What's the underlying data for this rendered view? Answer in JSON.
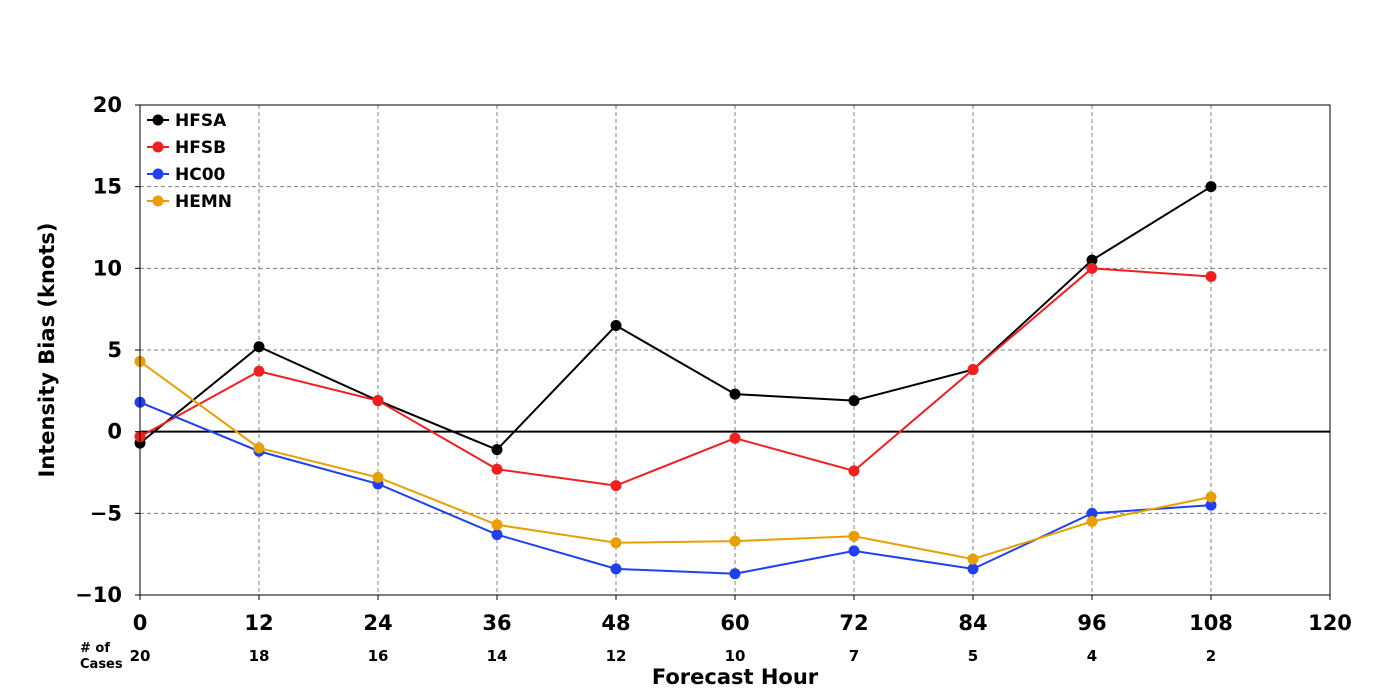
{
  "chart_data": {
    "type": "line",
    "xlabel": "Forecast Hour",
    "ylabel": "Intensity Bias (knots)",
    "xlim": [
      0,
      120
    ],
    "ylim": [
      -10,
      20
    ],
    "x_ticks": [
      0,
      12,
      24,
      36,
      48,
      60,
      72,
      84,
      96,
      108,
      120
    ],
    "x_tick_labels": [
      "0",
      "12",
      "24",
      "36",
      "48",
      "60",
      "72",
      "84",
      "96",
      "108",
      "120"
    ],
    "y_ticks": [
      -10,
      -5,
      0,
      5,
      10,
      15,
      20
    ],
    "y_tick_labels": [
      "−10",
      "−5",
      "0",
      "5",
      "10",
      "15",
      "20"
    ],
    "grid": true,
    "zero_line": true,
    "legend_position": "top-left",
    "cases_label": "# of\nCases",
    "cases_label_lines": [
      "# of",
      "Cases"
    ],
    "cases": [
      {
        "x": 0,
        "count": "20"
      },
      {
        "x": 12,
        "count": "18"
      },
      {
        "x": 24,
        "count": "16"
      },
      {
        "x": 36,
        "count": "14"
      },
      {
        "x": 48,
        "count": "12"
      },
      {
        "x": 60,
        "count": "10"
      },
      {
        "x": 72,
        "count": "7"
      },
      {
        "x": 84,
        "count": "5"
      },
      {
        "x": 96,
        "count": "4"
      },
      {
        "x": 108,
        "count": "2"
      }
    ],
    "x": [
      0,
      12,
      24,
      36,
      48,
      60,
      72,
      84,
      96,
      108
    ],
    "series": [
      {
        "name": "HFSA",
        "color": "#000000",
        "values": [
          -0.7,
          5.2,
          1.9,
          -1.1,
          6.5,
          2.3,
          1.9,
          3.8,
          10.5,
          15.0
        ]
      },
      {
        "name": "HFSB",
        "color": "#f02020",
        "values": [
          -0.3,
          3.7,
          1.9,
          -2.3,
          -3.3,
          -0.4,
          -2.4,
          3.8,
          10.0,
          9.5
        ]
      },
      {
        "name": "HC00",
        "color": "#2040f0",
        "values": [
          1.8,
          -1.2,
          -3.2,
          -6.3,
          -8.4,
          -8.7,
          -7.3,
          -8.4,
          -5.0,
          -4.5
        ]
      },
      {
        "name": "HEMN",
        "color": "#e8a000",
        "values": [
          4.3,
          -1.0,
          -2.8,
          -5.7,
          -6.8,
          -6.7,
          -6.4,
          -7.8,
          -5.5,
          -4.0
        ]
      }
    ]
  }
}
